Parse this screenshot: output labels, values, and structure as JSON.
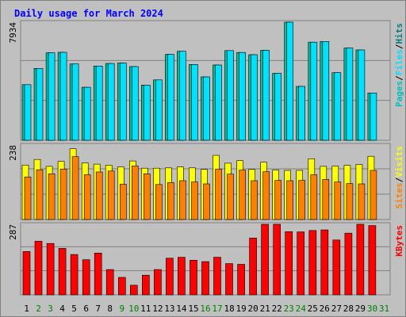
{
  "chart_data": {
    "type": "bar",
    "title": "Daily usage for March 2024",
    "categories": [
      "1",
      "2",
      "3",
      "4",
      "5",
      "6",
      "7",
      "8",
      "9",
      "10",
      "11",
      "12",
      "13",
      "14",
      "15",
      "16",
      "17",
      "18",
      "19",
      "20",
      "21",
      "22",
      "23",
      "24",
      "25",
      "26",
      "27",
      "28",
      "29",
      "30",
      "31"
    ],
    "weekend_days": [
      "2",
      "3",
      "9",
      "10",
      "16",
      "17",
      "23",
      "24",
      "30",
      "31"
    ],
    "panels": [
      {
        "name": "pages-files-hits",
        "ymax_label": "7934",
        "ylim": [
          0,
          7934
        ],
        "legend": [
          {
            "label": "Pages",
            "color": "#00c0c0"
          },
          {
            "label": "/",
            "color": "#000000"
          },
          {
            "label": "Files",
            "color": "#00e0ff"
          },
          {
            "label": "/",
            "color": "#000000"
          },
          {
            "label": "Hits",
            "color": "#008080"
          }
        ],
        "series": [
          {
            "name": "Hits",
            "color": "#00c0a0",
            "values": [
              3740,
              4830,
              5880,
              5910,
              5130,
              3560,
              4990,
              5160,
              5190,
              4950,
              3710,
              4060,
              5770,
              5980,
              5090,
              4260,
              5060,
              6030,
              5900,
              5750,
              6050,
              4500,
              7934,
              3620,
              6590,
              6640,
              4540,
              6200,
              6070,
              3180,
              null
            ]
          },
          {
            "name": "Files",
            "color": "#00e0ff",
            "values": [
              3740,
              4830,
              5880,
              5910,
              5130,
              3560,
              4990,
              5160,
              5190,
              4950,
              3710,
              4060,
              5770,
              5980,
              5090,
              4260,
              5060,
              6030,
              5900,
              5750,
              6050,
              4500,
              7934,
              3620,
              6590,
              6640,
              4540,
              6200,
              6070,
              3180,
              null
            ]
          }
        ]
      },
      {
        "name": "visits-sites",
        "ymax_label": "238",
        "ylim": [
          0,
          238
        ],
        "legend": [
          {
            "label": "Sites",
            "color": "#ff8000"
          },
          {
            "label": "/",
            "color": "#000000"
          },
          {
            "label": "Visits",
            "color": "#ffff00"
          }
        ],
        "series": [
          {
            "name": "Visits",
            "color": "#ffff00",
            "values": [
              174,
              192,
              170,
              186,
              226,
              181,
              177,
              174,
              168,
              187,
              164,
              164,
              165,
              168,
              165,
              160,
              205,
              180,
              188,
              160,
              183,
              158,
              157,
              157,
              194,
              170,
              171,
              173,
              176,
              202,
              null
            ]
          },
          {
            "name": "Sites",
            "color": "#ff8000",
            "values": [
              136,
              159,
              146,
              161,
              201,
              143,
              152,
              155,
              113,
              171,
              146,
              112,
              118,
              124,
              120,
              114,
              161,
              145,
              158,
              124,
              153,
              125,
              124,
              125,
              143,
              128,
              120,
              115,
              114,
              157,
              null
            ]
          }
        ]
      },
      {
        "name": "kbytes",
        "ymax_label": "287",
        "ylim": [
          0,
          287
        ],
        "legend": [
          {
            "label": "KBytes",
            "color": "#ff0000"
          }
        ],
        "series": [
          {
            "name": "KBytes",
            "color": "#ff0000",
            "values": [
              176,
              218,
              209,
              189,
              164,
              143,
              170,
              103,
              71,
              39,
              80,
              103,
              149,
              153,
              141,
              135,
              153,
              127,
              124,
              231,
              287,
              287,
              257,
              256,
              262,
              264,
              223,
              251,
              287,
              282,
              null
            ]
          }
        ]
      }
    ],
    "colors": {
      "background": "#c0c0c0",
      "plot_background": "#c0c0c0",
      "title": "#0000ff",
      "gridline": "#808080",
      "weekday_label": "#000000",
      "weekend_label": "#008000"
    }
  }
}
